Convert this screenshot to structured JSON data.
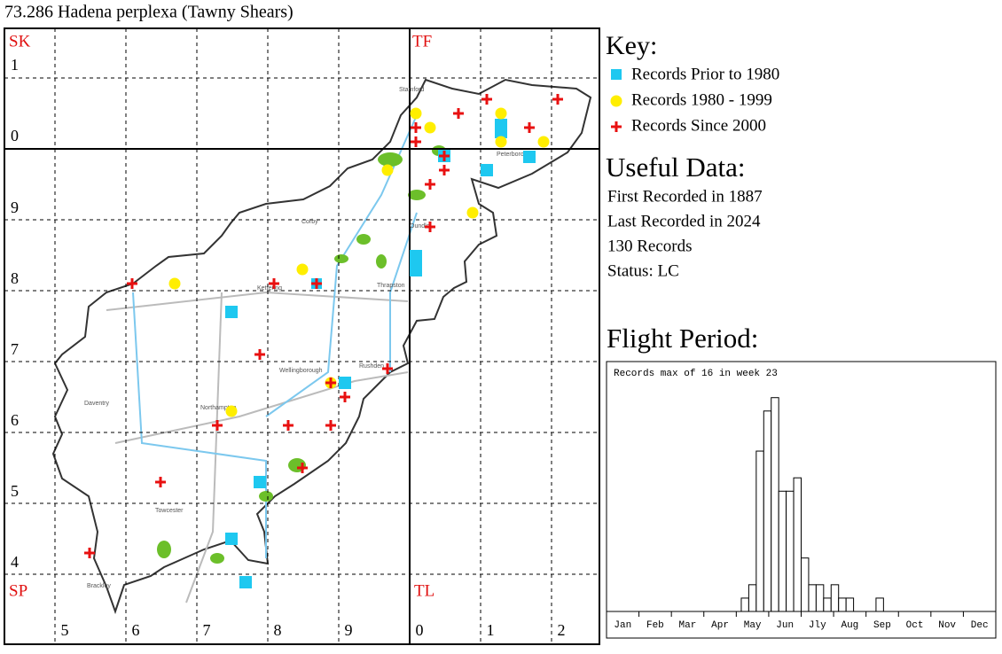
{
  "title": "73.286 Hadena perplexa (Tawny Shears)",
  "map": {
    "squares": [
      "SK",
      "TF",
      "SP",
      "TL"
    ],
    "rows": [
      "1",
      "0",
      "9",
      "8",
      "7",
      "6",
      "5",
      "4"
    ],
    "columns": [
      "5",
      "6",
      "7",
      "8",
      "9",
      "0",
      "1",
      "2"
    ],
    "towns": [
      "Stamford",
      "Peterborough",
      "Corby",
      "Oundle",
      "Kettering",
      "Thrapston",
      "Wellingborough",
      "Rushden",
      "Northampton",
      "Daventry",
      "Towcester",
      "Brackley"
    ]
  },
  "key": {
    "heading": "Key:",
    "items": [
      "Records Prior to 1980",
      "Records 1980 - 1999",
      "Records Since 2000"
    ]
  },
  "useful_data": {
    "heading": "Useful Data:",
    "lines": [
      "First Recorded in 1887",
      "Last Recorded in 2024",
      "130 Records",
      "Status: LC"
    ]
  },
  "flight_heading": "Flight Period:",
  "chart_data": {
    "type": "bar",
    "title": "Records max of 16 in week 23",
    "months": [
      "Jan",
      "Feb",
      "Mar",
      "Apr",
      "May",
      "Jun",
      "Jly",
      "Aug",
      "Sep",
      "Oct",
      "Nov",
      "Dec"
    ],
    "x": [
      19,
      20,
      21,
      22,
      23,
      24,
      25,
      26,
      27,
      28,
      29,
      30,
      31,
      32,
      33,
      37
    ],
    "values": [
      1,
      2,
      12,
      15,
      16,
      9,
      9,
      10,
      4,
      2,
      2,
      1,
      2,
      1,
      1,
      1
    ],
    "xlim": [
      1,
      53
    ],
    "ylim": [
      0,
      18.7
    ],
    "color": "#ffffff"
  }
}
